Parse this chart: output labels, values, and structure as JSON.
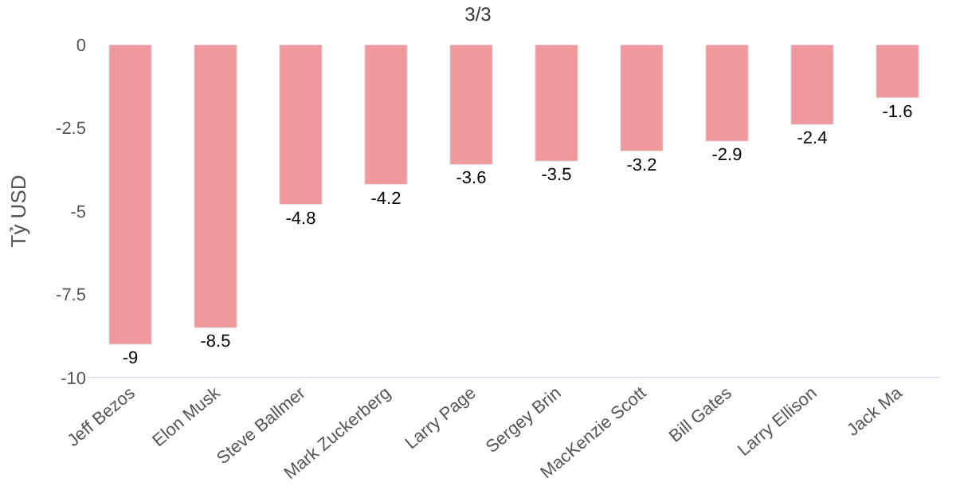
{
  "chart_data": {
    "type": "bar",
    "title": "3/3",
    "ylabel": "Tỷ USD",
    "categories": [
      "Jeff Bezos",
      "Elon Musk",
      "Steve Ballmer",
      "Mark Zuckerberg",
      "Larry Page",
      "Sergey Brin",
      "MacKenzie Scott",
      "Bill Gates",
      "Larry Ellison",
      "Jack Ma"
    ],
    "values": [
      -9,
      -8.5,
      -4.8,
      -4.2,
      -3.6,
      -3.5,
      -3.2,
      -2.9,
      -2.4,
      -1.6
    ],
    "color": "#f0999c",
    "ylim": [
      -10,
      0
    ],
    "yticks": [
      -10,
      -7.5,
      -5,
      -2.5,
      0
    ],
    "data_labels": true
  }
}
